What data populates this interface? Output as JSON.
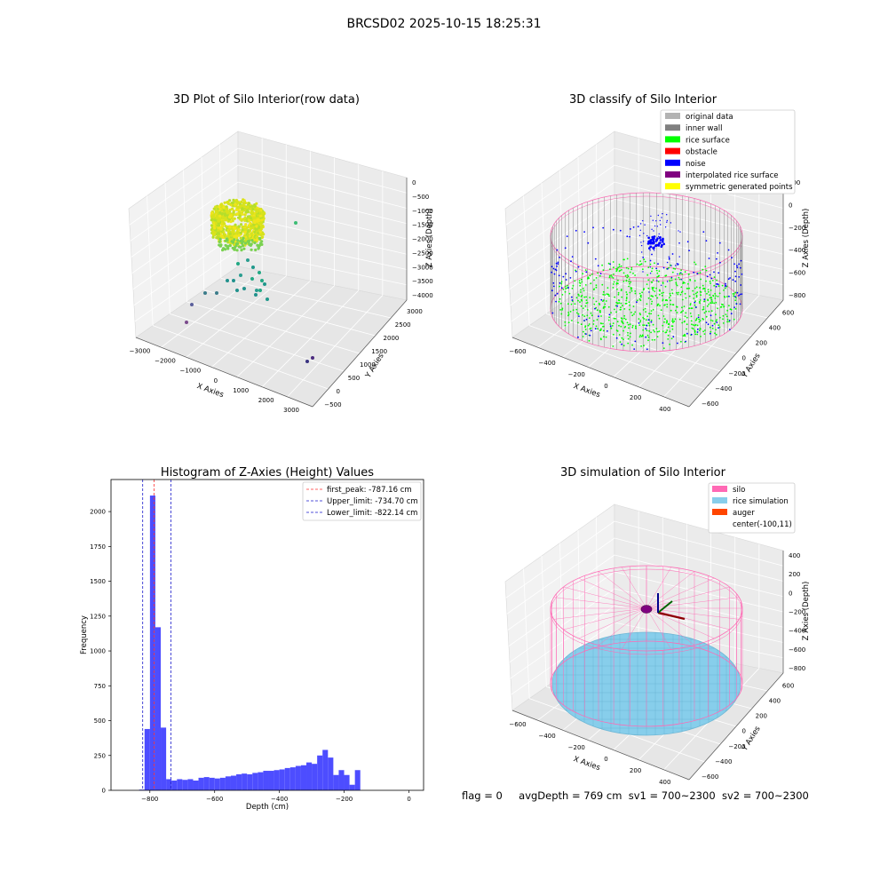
{
  "figure": {
    "suptitle": "BRCSD02 2025-10-15 18:25:31",
    "status": {
      "flag": "flag = 0",
      "avg_depth": "avgDepth = 769 cm",
      "sv1": "sv1 = 700~2300",
      "sv2": "sv2 = 700~2300"
    }
  },
  "colors": {
    "hist_bar": "#4d4dff",
    "peak_line": "#ff3030",
    "limit_line": "#1a1acc",
    "silo": "#ff69b4",
    "rice_sim": "#87ceeb",
    "auger": "#ff4500",
    "original": "#b3b3b3",
    "inner_wall": "#808080",
    "rice_surface": "#00ff00",
    "obstacle": "#ff0000",
    "noise": "#0000ff",
    "interpolated": "#800080",
    "symmetric": "#ffff00"
  },
  "chart_data": [
    {
      "type": "scatter",
      "title": "3D Plot of Silo Interior(row data)",
      "xlabel": "X Axies",
      "ylabel": "Y Axies",
      "zlabel": "Z Axies (Depth)",
      "x_ticks": [
        "−3000",
        "−2000",
        "−1000",
        "0",
        "1000",
        "2000",
        "3000"
      ],
      "y_ticks": [
        "−500",
        "0",
        "500",
        "1000",
        "1500",
        "2000",
        "2500",
        "3000"
      ],
      "z_ticks": [
        "0",
        "−500",
        "−1000",
        "−1500",
        "−2000",
        "−2500",
        "−3000",
        "−3500",
        "−4000"
      ],
      "grid": true
    },
    {
      "type": "scatter",
      "title": "3D classify of Silo Interior",
      "xlabel": "X Axies",
      "ylabel": "Y Axies",
      "zlabel": "Z Axies (Depth)",
      "x_ticks": [
        "−600",
        "−400",
        "−200",
        "0",
        "200",
        "400"
      ],
      "y_ticks": [
        "−600",
        "−400",
        "−200",
        "0",
        "200",
        "400",
        "600"
      ],
      "z_ticks": [
        "200",
        "0",
        "−200",
        "−400",
        "−600",
        "−800"
      ],
      "legend": [
        "original data",
        "inner wall",
        "rice surface",
        "obstacle",
        "noise",
        "interpolated rice surface",
        "symmetric generated points"
      ],
      "legend_position": "upper-right",
      "grid": true
    },
    {
      "type": "bar",
      "title": "Histogram of Z-Axies (Height) Values",
      "xlabel": "Depth (cm)",
      "ylabel": "Frequency",
      "xlim": [
        -920,
        45
      ],
      "ylim": [
        0,
        2230
      ],
      "x_ticks": [
        -800,
        -600,
        -400,
        -200,
        0
      ],
      "x_tick_labels": [
        "−800",
        "−600",
        "−400",
        "−200",
        "0"
      ],
      "y_ticks": [
        0,
        250,
        500,
        750,
        1000,
        1250,
        1500,
        1750,
        2000
      ],
      "y_tick_labels": [
        "0",
        "250",
        "500",
        "750",
        "1000",
        "1250",
        "1500",
        "1750",
        "2000"
      ],
      "bin_start": -833,
      "bin_width": 16.65,
      "values": [
        5,
        440,
        2115,
        1170,
        450,
        80,
        70,
        80,
        75,
        80,
        70,
        90,
        95,
        90,
        85,
        90,
        100,
        105,
        115,
        120,
        115,
        125,
        130,
        140,
        140,
        145,
        150,
        160,
        165,
        175,
        180,
        200,
        190,
        250,
        290,
        235,
        110,
        145,
        110,
        40,
        145
      ],
      "vlines": [
        {
          "x": -787.16,
          "label": "first_peak: -787.16 cm",
          "style": "dashed",
          "color": "#ff3030"
        },
        {
          "x": -734.7,
          "label": "Upper_limit: -734.70 cm",
          "style": "dashed",
          "color": "#1a1acc"
        },
        {
          "x": -822.14,
          "label": "Lower_limit: -822.14 cm",
          "style": "dashed",
          "color": "#1a1acc"
        }
      ],
      "legend_position": "upper-right"
    },
    {
      "type": "scatter",
      "title": "3D simulation of Silo Interior",
      "xlabel": "X Axies",
      "ylabel": "Y Axies",
      "zlabel": "Z Axies (Depth)",
      "x_ticks": [
        "−600",
        "−400",
        "−200",
        "0",
        "200",
        "400"
      ],
      "y_ticks": [
        "−600",
        "−400",
        "−200",
        "0",
        "200",
        "400",
        "600"
      ],
      "z_ticks": [
        "400",
        "200",
        "0",
        "−200",
        "−400",
        "−600",
        "−800"
      ],
      "legend": [
        "silo",
        "rice simulation",
        "auger",
        "center(-100,11)"
      ],
      "legend_position": "upper-right",
      "grid": true
    }
  ]
}
